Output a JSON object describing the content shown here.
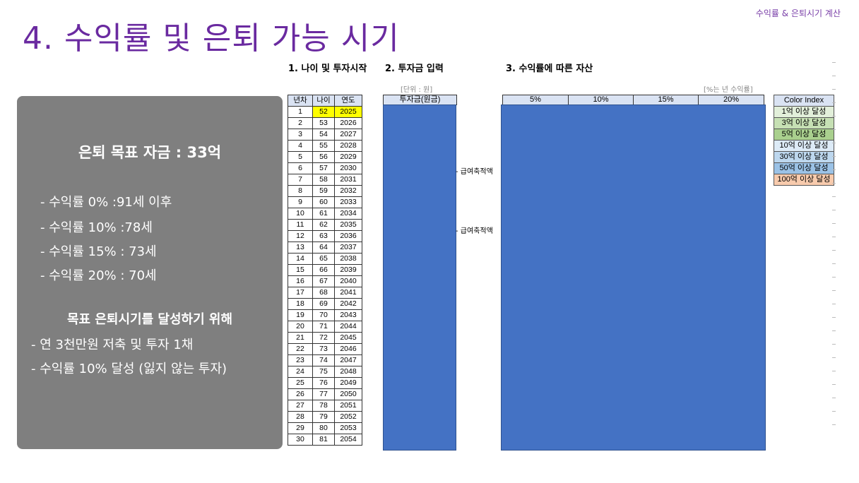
{
  "corner_label": "수익률 & 은퇴시기 계산",
  "title": "4. 수익률 및 은퇴 가능 시기",
  "sections": {
    "s1": "1. 나이 및 투자시작",
    "s2": "2. 투자금 입력",
    "s3": "3. 수익률에 따른 자산"
  },
  "panel": {
    "goal": "은퇴 목표 자금 : 33억",
    "rates": [
      "- 수익률   0% :91세 이후",
      "- 수익률 10% :78세",
      "- 수익률 15% : 73세",
      "- 수익률 20% : 70세"
    ],
    "subtitle": "목표 은퇴시기를 달성하기 위해",
    "bullets": [
      "- 연 3천만원 저축 및 투자 1채",
      "- 수익률 10% 달성 (잃지 않는 투자)"
    ]
  },
  "unit_note": "[단위 : 원]",
  "rate_note": "[%는 년 수익률]",
  "age_table": {
    "headers": [
      "년차",
      "나이",
      "연도"
    ],
    "rows": [
      [
        "1",
        "52",
        "2025"
      ],
      [
        "2",
        "53",
        "2026"
      ],
      [
        "3",
        "54",
        "2027"
      ],
      [
        "4",
        "55",
        "2028"
      ],
      [
        "5",
        "56",
        "2029"
      ],
      [
        "6",
        "57",
        "2030"
      ],
      [
        "7",
        "58",
        "2031"
      ],
      [
        "8",
        "59",
        "2032"
      ],
      [
        "9",
        "60",
        "2033"
      ],
      [
        "10",
        "61",
        "2034"
      ],
      [
        "11",
        "62",
        "2035"
      ],
      [
        "12",
        "63",
        "2036"
      ],
      [
        "13",
        "64",
        "2037"
      ],
      [
        "14",
        "65",
        "2038"
      ],
      [
        "15",
        "66",
        "2039"
      ],
      [
        "16",
        "67",
        "2040"
      ],
      [
        "17",
        "68",
        "2041"
      ],
      [
        "18",
        "69",
        "2042"
      ],
      [
        "19",
        "70",
        "2043"
      ],
      [
        "20",
        "71",
        "2044"
      ],
      [
        "21",
        "72",
        "2045"
      ],
      [
        "22",
        "73",
        "2046"
      ],
      [
        "23",
        "74",
        "2047"
      ],
      [
        "24",
        "75",
        "2048"
      ],
      [
        "25",
        "76",
        "2049"
      ],
      [
        "26",
        "77",
        "2050"
      ],
      [
        "27",
        "78",
        "2051"
      ],
      [
        "28",
        "79",
        "2052"
      ],
      [
        "29",
        "80",
        "2053"
      ],
      [
        "30",
        "81",
        "2054"
      ]
    ]
  },
  "invest_header": "투자금(원금)",
  "annotations": [
    "급여축적액",
    "급여축적액"
  ],
  "rate_headers": [
    "5%",
    "10%",
    "15%",
    "20%"
  ],
  "color_index": {
    "title": "Color Index",
    "items": [
      {
        "label": "1억 이상 달성",
        "color": "#e2efda"
      },
      {
        "label": "3억 이상 달성",
        "color": "#c6e0b4"
      },
      {
        "label": "5억 이상 달성",
        "color": "#a9d08e"
      },
      {
        "label": "10억 이상 달성",
        "color": "#ddebf7"
      },
      {
        "label": "30억 이상 달성",
        "color": "#bdd7ee"
      },
      {
        "label": "50억 이상 달성",
        "color": "#9bc2e6"
      },
      {
        "label": "100억 이상 달성",
        "color": "#f8cbad"
      }
    ]
  },
  "colors": {
    "title": "#6a2aa0",
    "panel": "#7f7f7f",
    "mask": "#4472c4",
    "highlight": "#ffff00"
  }
}
